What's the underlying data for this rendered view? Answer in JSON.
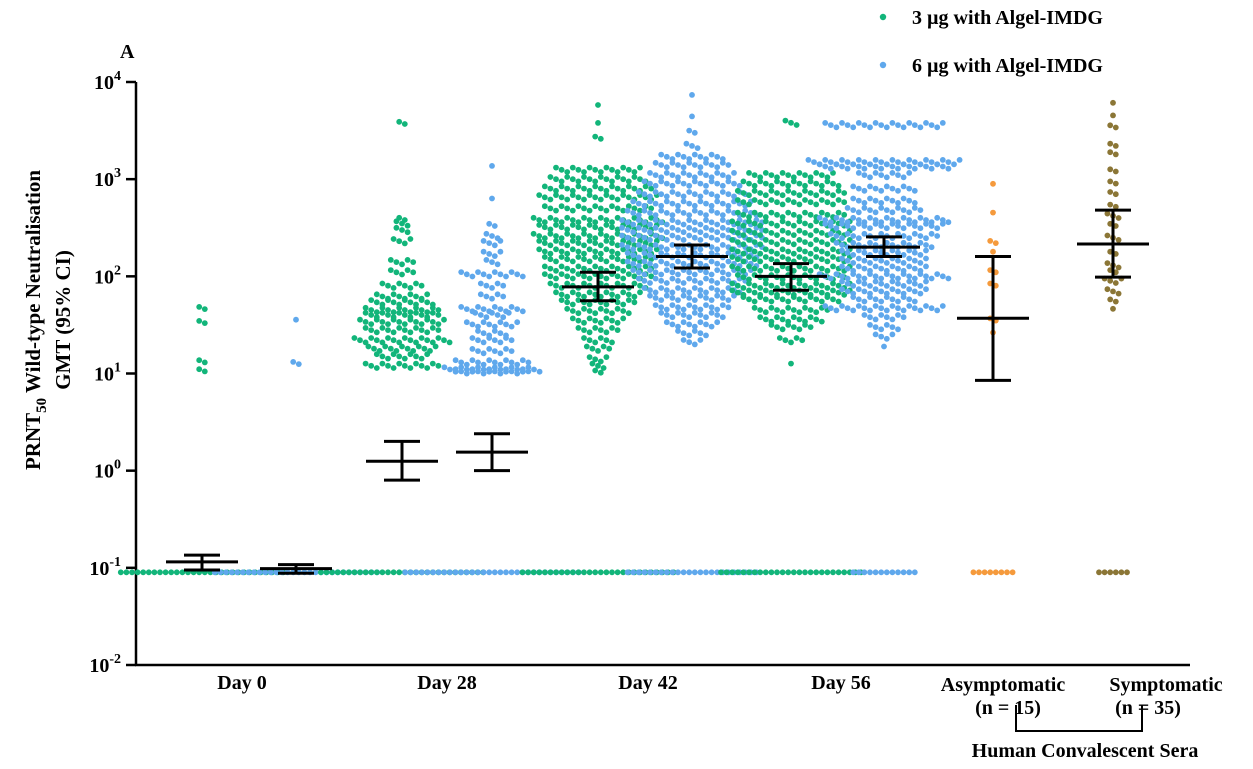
{
  "panel_label": "A",
  "chart_data": {
    "type": "scatter",
    "ylabel_main": "PRNT",
    "ylabel_sub": "50",
    "ylabel_rest": " Wild-type Neutralisation",
    "ylabel_line2": "GMT  (95% CI)",
    "yscale": "log",
    "ylim": [
      0.01,
      10000
    ],
    "yticks": [
      {
        "base": "10",
        "exp": "-2",
        "value": 0.01
      },
      {
        "base": "10",
        "exp": "-1",
        "value": 0.1
      },
      {
        "base": "10",
        "exp": "0",
        "value": 1
      },
      {
        "base": "10",
        "exp": "1",
        "value": 10
      },
      {
        "base": "10",
        "exp": "2",
        "value": 100
      },
      {
        "base": "10",
        "exp": "3",
        "value": 1000
      },
      {
        "base": "10",
        "exp": "4",
        "value": 10000
      }
    ],
    "x_groups": [
      {
        "label": "Day 0"
      },
      {
        "label": "Day 28"
      },
      {
        "label": "Day 42"
      },
      {
        "label": "Day 56"
      }
    ],
    "conv_labels": {
      "asymptomatic": "Asymptomatic",
      "symptomatic": "Symptomatic",
      "n_asym": "(n = 15)",
      "n_sym": "(n = 35)",
      "group_label": "Human Convalescent Sera"
    },
    "legend": [
      {
        "name": "3 µg with Algel-IMDG",
        "color": "#12b57a"
      },
      {
        "name": "6 µg with Algel-IMDG",
        "color": "#5fa8ec"
      }
    ],
    "columns": [
      {
        "series": "3 µg with Algel-IMDG",
        "group": "Day 0",
        "color": "#12b57a",
        "gmt": 0.115,
        "ci": [
          0.095,
          0.135
        ],
        "bands": [
          [
            46,
            2,
            1
          ],
          [
            33,
            2,
            1
          ],
          [
            13,
            2,
            1
          ],
          [
            10.5,
            2,
            1
          ],
          [
            0.09,
            30,
            0
          ]
        ]
      },
      {
        "series": "6 µg with Algel-IMDG",
        "group": "Day 0",
        "color": "#5fa8ec",
        "gmt": 0.098,
        "ci": [
          0.088,
          0.108
        ],
        "bands": [
          [
            34,
            1,
            1
          ],
          [
            12.5,
            2,
            1
          ],
          [
            0.09,
            30,
            0
          ]
        ]
      },
      {
        "series": "3 µg with Algel-IMDG",
        "group": "Day 28",
        "color": "#12b57a",
        "gmt": 1.25,
        "ci": [
          0.8,
          2.0
        ],
        "bands": [
          [
            3700,
            2,
            1
          ],
          [
            380,
            2,
            1
          ],
          [
            350,
            3,
            1
          ],
          [
            300,
            3,
            1
          ],
          [
            230,
            4,
            1
          ],
          [
            140,
            5,
            1
          ],
          [
            110,
            5,
            1
          ],
          [
            80,
            8,
            1
          ],
          [
            62,
            10,
            1
          ],
          [
            54,
            12,
            1
          ],
          [
            45,
            14,
            1
          ],
          [
            40,
            14,
            1
          ],
          [
            34,
            16,
            1
          ],
          [
            28,
            14,
            1
          ],
          [
            22,
            18,
            1
          ],
          [
            18,
            13,
            1
          ],
          [
            15,
            10,
            1
          ],
          [
            12,
            14,
            1
          ],
          [
            0.09,
            30,
            0
          ]
        ]
      },
      {
        "series": "6 µg with Algel-IMDG",
        "group": "Day 28",
        "color": "#5fa8ec",
        "gmt": 1.55,
        "ci": [
          1.0,
          2.4
        ],
        "bands": [
          [
            1300,
            1,
            1
          ],
          [
            600,
            1,
            1
          ],
          [
            330,
            2,
            1
          ],
          [
            260,
            3,
            1
          ],
          [
            220,
            4,
            1
          ],
          [
            170,
            4,
            1
          ],
          [
            140,
            3,
            1
          ],
          [
            105,
            12,
            1
          ],
          [
            80,
            5,
            1
          ],
          [
            62,
            5,
            1
          ],
          [
            46,
            12,
            1
          ],
          [
            40,
            7,
            1
          ],
          [
            32,
            10,
            1
          ],
          [
            26,
            6,
            1
          ],
          [
            22,
            8,
            1
          ],
          [
            17,
            8,
            1
          ],
          [
            13,
            14,
            1
          ],
          [
            11,
            18,
            1
          ],
          [
            10.5,
            14,
            1
          ],
          [
            0.09,
            32,
            0
          ]
        ]
      },
      {
        "series": "3 µg with Algel-IMDG",
        "group": "Day 42",
        "color": "#12b57a",
        "gmt": 78,
        "ci": [
          56,
          110
        ],
        "bands": [
          [
            5500,
            1,
            1
          ],
          [
            3600,
            1,
            1
          ],
          [
            2600,
            2,
            1
          ],
          [
            1250,
            16,
            1
          ],
          [
            1000,
            18,
            1
          ],
          [
            800,
            20,
            1
          ],
          [
            650,
            22,
            1
          ],
          [
            500,
            20,
            1
          ],
          [
            380,
            24,
            1
          ],
          [
            320,
            22,
            1
          ],
          [
            260,
            24,
            1
          ],
          [
            220,
            22,
            1
          ],
          [
            180,
            22,
            1
          ],
          [
            150,
            20,
            1
          ],
          [
            120,
            20,
            1
          ],
          [
            100,
            20,
            1
          ],
          [
            80,
            18,
            1
          ],
          [
            65,
            16,
            1
          ],
          [
            54,
            14,
            1
          ],
          [
            44,
            12,
            1
          ],
          [
            35,
            10,
            1
          ],
          [
            28,
            8,
            1
          ],
          [
            22,
            6,
            1
          ],
          [
            18,
            5,
            1
          ],
          [
            14,
            4,
            1
          ],
          [
            12,
            3,
            1
          ],
          [
            10.2,
            2,
            1
          ],
          [
            0.09,
            28,
            0
          ]
        ]
      },
      {
        "series": "6 µg with Algel-IMDG",
        "group": "Day 42",
        "color": "#5fa8ec",
        "gmt": 160,
        "ci": [
          122,
          210
        ],
        "bands": [
          [
            7000,
            1,
            1
          ],
          [
            4200,
            1,
            1
          ],
          [
            3000,
            2,
            1
          ],
          [
            2200,
            3,
            1
          ],
          [
            1700,
            12,
            1
          ],
          [
            1400,
            14,
            1
          ],
          [
            1100,
            16,
            1
          ],
          [
            900,
            18,
            1
          ],
          [
            700,
            20,
            1
          ],
          [
            560,
            22,
            1
          ],
          [
            450,
            24,
            1
          ],
          [
            360,
            26,
            1
          ],
          [
            300,
            26,
            1
          ],
          [
            250,
            26,
            1
          ],
          [
            200,
            26,
            1
          ],
          [
            165,
            24,
            1
          ],
          [
            135,
            24,
            1
          ],
          [
            110,
            22,
            1
          ],
          [
            90,
            20,
            1
          ],
          [
            72,
            18,
            1
          ],
          [
            60,
            16,
            1
          ],
          [
            48,
            14,
            1
          ],
          [
            40,
            12,
            1
          ],
          [
            32,
            10,
            1
          ],
          [
            26,
            6,
            1
          ],
          [
            21,
            4,
            1
          ],
          [
            0.09,
            24,
            0
          ]
        ]
      },
      {
        "series": "3 µg with Algel-IMDG",
        "group": "Day 56",
        "color": "#12b57a",
        "gmt": 100,
        "ci": [
          72,
          135
        ],
        "bands": [
          [
            3800,
            3,
            1
          ],
          [
            1100,
            16,
            1
          ],
          [
            900,
            18,
            1
          ],
          [
            720,
            20,
            1
          ],
          [
            580,
            20,
            1
          ],
          [
            430,
            20,
            1
          ],
          [
            350,
            22,
            1
          ],
          [
            280,
            22,
            1
          ],
          [
            225,
            22,
            1
          ],
          [
            180,
            22,
            1
          ],
          [
            150,
            22,
            1
          ],
          [
            120,
            22,
            1
          ],
          [
            98,
            20,
            1
          ],
          [
            80,
            22,
            1
          ],
          [
            68,
            22,
            1
          ],
          [
            58,
            18,
            1
          ],
          [
            45,
            14,
            1
          ],
          [
            36,
            12,
            1
          ],
          [
            30,
            8,
            1
          ],
          [
            22,
            5,
            1
          ],
          [
            12,
            1,
            1
          ],
          [
            0.09,
            26,
            0
          ]
        ]
      },
      {
        "series": "6 µg with Algel-IMDG",
        "group": "Day 56",
        "color": "#5fa8ec",
        "gmt": 200,
        "ci": [
          160,
          255
        ],
        "bands": [
          [
            3600,
            22,
            1
          ],
          [
            1500,
            28,
            1
          ],
          [
            1350,
            24,
            1
          ],
          [
            1100,
            10,
            1
          ],
          [
            800,
            12,
            1
          ],
          [
            600,
            12,
            1
          ],
          [
            480,
            14,
            1
          ],
          [
            380,
            24,
            1
          ],
          [
            330,
            22,
            1
          ],
          [
            260,
            20,
            1
          ],
          [
            210,
            18,
            1
          ],
          [
            175,
            16,
            1
          ],
          [
            145,
            16,
            1
          ],
          [
            120,
            16,
            1
          ],
          [
            100,
            24,
            1
          ],
          [
            84,
            16,
            1
          ],
          [
            70,
            16,
            1
          ],
          [
            58,
            12,
            1
          ],
          [
            47,
            22,
            1
          ],
          [
            38,
            8,
            1
          ],
          [
            30,
            6,
            1
          ],
          [
            24,
            4,
            1
          ],
          [
            18,
            1,
            1
          ],
          [
            0.09,
            12,
            0
          ]
        ]
      },
      {
        "series": "Asymptomatic",
        "group": "Asymptomatic",
        "color": "#f59a3c",
        "gmt": 37,
        "ci": [
          8.5,
          160
        ],
        "bands": [
          [
            850,
            1,
            1
          ],
          [
            430,
            1,
            1
          ],
          [
            220,
            2,
            1
          ],
          [
            170,
            1,
            1
          ],
          [
            110,
            2,
            1
          ],
          [
            80,
            2,
            1
          ],
          [
            35,
            2,
            1
          ],
          [
            25,
            1,
            1
          ],
          [
            0.09,
            8,
            0
          ]
        ]
      },
      {
        "series": "Symptomatic",
        "group": "Symptomatic",
        "color": "#8b7636",
        "gmt": 215,
        "ci": [
          98,
          480
        ],
        "bands": [
          [
            5800,
            1,
            1
          ],
          [
            4300,
            1,
            1
          ],
          [
            3400,
            2,
            1
          ],
          [
            2200,
            2,
            1
          ],
          [
            1800,
            2,
            1
          ],
          [
            1200,
            2,
            1
          ],
          [
            900,
            2,
            1
          ],
          [
            700,
            2,
            1
          ],
          [
            520,
            2,
            1
          ],
          [
            420,
            3,
            1
          ],
          [
            330,
            2,
            1
          ],
          [
            250,
            3,
            1
          ],
          [
            170,
            2,
            1
          ],
          [
            130,
            3,
            1
          ],
          [
            110,
            2,
            1
          ],
          [
            90,
            4,
            1
          ],
          [
            70,
            3,
            1
          ],
          [
            55,
            2,
            1
          ],
          [
            44,
            1,
            1
          ],
          [
            0.09,
            6,
            0
          ]
        ]
      }
    ]
  }
}
